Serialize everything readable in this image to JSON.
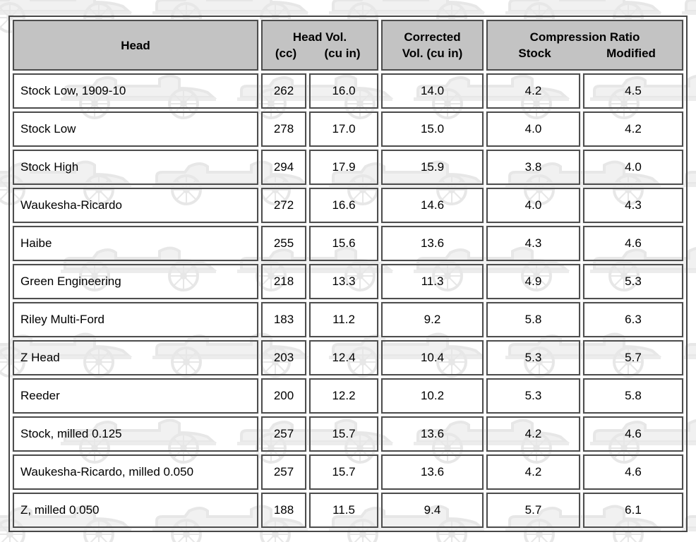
{
  "table": {
    "headers": {
      "head": "Head",
      "head_vol": {
        "title": "Head Vol.",
        "sub_cc": "(cc)",
        "sub_cu_in": "(cu in)"
      },
      "corrected": {
        "line1": "Corrected",
        "line2": "Vol. (cu in)"
      },
      "compression": {
        "title": "Compression Ratio",
        "sub_stock": "Stock",
        "sub_modified": "Modified"
      }
    },
    "rows": [
      {
        "head": "Stock Low, 1909-10",
        "cc": "262",
        "cu_in": "16.0",
        "corrected": "14.0",
        "stock": "4.2",
        "modified": "4.5"
      },
      {
        "head": "Stock Low",
        "cc": "278",
        "cu_in": "17.0",
        "corrected": "15.0",
        "stock": "4.0",
        "modified": "4.2"
      },
      {
        "head": "Stock High",
        "cc": "294",
        "cu_in": "17.9",
        "corrected": "15.9",
        "stock": "3.8",
        "modified": "4.0"
      },
      {
        "head": "Waukesha-Ricardo",
        "cc": "272",
        "cu_in": "16.6",
        "corrected": "14.6",
        "stock": "4.0",
        "modified": "4.3"
      },
      {
        "head": "Haibe",
        "cc": "255",
        "cu_in": "15.6",
        "corrected": "13.6",
        "stock": "4.3",
        "modified": "4.6"
      },
      {
        "head": "Green Engineering",
        "cc": "218",
        "cu_in": "13.3",
        "corrected": "11.3",
        "stock": "4.9",
        "modified": "5.3"
      },
      {
        "head": "Riley Multi-Ford",
        "cc": "183",
        "cu_in": "11.2",
        "corrected": "9.2",
        "stock": "5.8",
        "modified": "6.3"
      },
      {
        "head": "Z Head",
        "cc": "203",
        "cu_in": "12.4",
        "corrected": "10.4",
        "stock": "5.3",
        "modified": "5.7"
      },
      {
        "head": "Reeder",
        "cc": "200",
        "cu_in": "12.2",
        "corrected": "10.2",
        "stock": "5.3",
        "modified": "5.8"
      },
      {
        "head": "Stock, milled 0.125",
        "cc": "257",
        "cu_in": "15.7",
        "corrected": "13.6",
        "stock": "4.2",
        "modified": "4.6"
      },
      {
        "head": "Waukesha-Ricardo, milled 0.050",
        "cc": "257",
        "cu_in": "15.7",
        "corrected": "13.6",
        "stock": "4.2",
        "modified": "4.6"
      },
      {
        "head": "Z, milled 0.050",
        "cc": "188",
        "cu_in": "11.5",
        "corrected": "9.4",
        "stock": "5.7",
        "modified": "6.1"
      }
    ]
  },
  "colors": {
    "header_bg": "#c3c3c3",
    "cell_border": "#4d4d4d",
    "text": "#000000",
    "page_bg": "#ffffff",
    "watermark": "#e3e3e3"
  }
}
